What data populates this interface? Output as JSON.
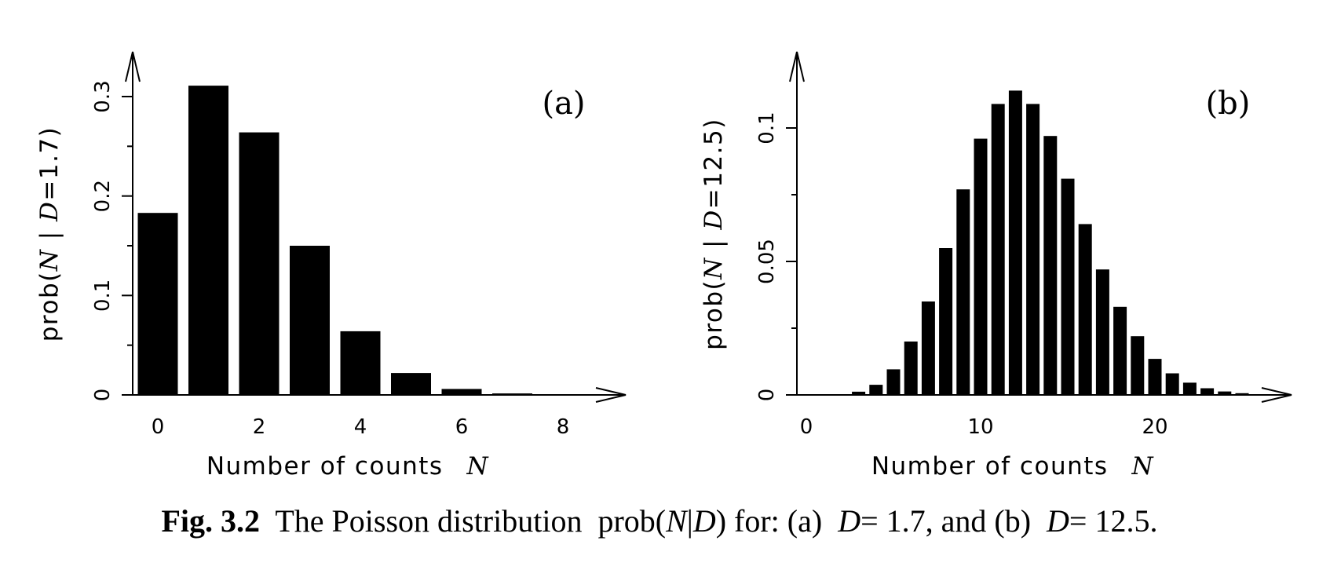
{
  "chart_data": [
    {
      "type": "bar",
      "panel_label": "(a)",
      "ylabel_prefix": "prob(",
      "ylabel_italic_n": "N",
      "ylabel_bar": " | ",
      "ylabel_italic_d": "D",
      "ylabel_suffix": "=1.7)",
      "xlabel": "Number of counts",
      "xlabel_symbol": "N",
      "x": [
        0,
        1,
        2,
        3,
        4,
        5,
        6,
        7,
        8
      ],
      "values": [
        0.183,
        0.311,
        0.264,
        0.15,
        0.064,
        0.022,
        0.006,
        0.0015,
        0.0003
      ],
      "xticks": [
        "0",
        "2",
        "4",
        "6",
        "8"
      ],
      "yticks": [
        "0",
        "0.1",
        "0.2",
        "0.3"
      ],
      "xlim": [
        -0.5,
        9.3
      ],
      "ylim": [
        0,
        0.35
      ],
      "grid": false
    },
    {
      "type": "bar",
      "panel_label": "(b)",
      "ylabel_prefix": "prob(",
      "ylabel_italic_n": "N",
      "ylabel_bar": " | ",
      "ylabel_italic_d": "D",
      "ylabel_suffix": "=12.5)",
      "xlabel": "Number of counts",
      "xlabel_symbol": "N",
      "x": [
        0,
        1,
        2,
        3,
        4,
        5,
        6,
        7,
        8,
        9,
        10,
        11,
        12,
        13,
        14,
        15,
        16,
        17,
        18,
        19,
        20,
        21,
        22,
        23,
        24,
        25
      ],
      "values": [
        3.7e-06,
        4.7e-05,
        0.00029,
        0.0012,
        0.0038,
        0.0096,
        0.02,
        0.035,
        0.055,
        0.077,
        0.096,
        0.109,
        0.114,
        0.109,
        0.097,
        0.081,
        0.064,
        0.047,
        0.033,
        0.022,
        0.0135,
        0.0081,
        0.0046,
        0.0025,
        0.0013,
        0.00065
      ],
      "xticks": [
        "0",
        "10",
        "20"
      ],
      "yticks": [
        "0",
        "0.05",
        "0.1"
      ],
      "xlim": [
        -0.5,
        27.5
      ],
      "ylim": [
        0,
        0.13
      ],
      "grid": false
    }
  ],
  "caption": {
    "label": "Fig. 3.2",
    "text1": "The Poisson distribution",
    "expr_prefix": "prob(",
    "expr_n": "N",
    "expr_bar": "|",
    "expr_d": "D",
    "expr_suffix": ")",
    "text2": "for: (a)",
    "d1_var": "D",
    "d1_val": "= 1.7, and (b)",
    "d2_var": "D",
    "d2_val": "= 12.5."
  }
}
